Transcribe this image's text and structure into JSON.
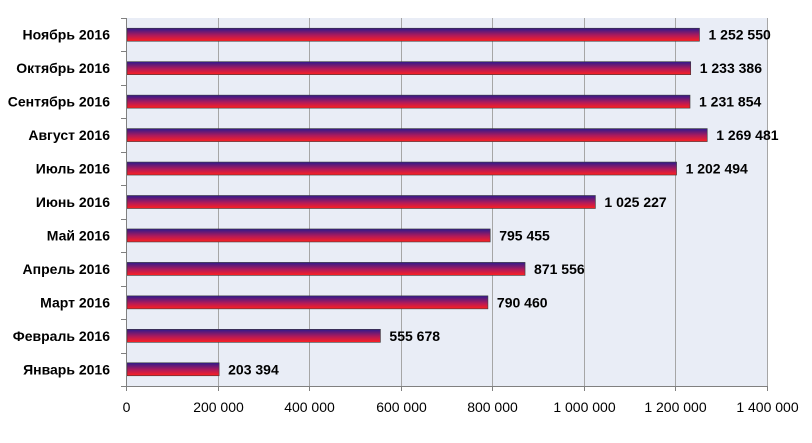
{
  "chart_data": {
    "type": "bar",
    "orientation": "horizontal",
    "title": "",
    "xlabel": "",
    "ylabel": "",
    "categories": [
      "Январь 2016",
      "Февраль 2016",
      "Март 2016",
      "Апрель 2016",
      "Май 2016",
      "Июнь 2016",
      "Июль 2016",
      "Август 2016",
      "Сентябрь 2016",
      "Октябрь 2016",
      "Ноябрь 2016"
    ],
    "values": [
      203394,
      555678,
      790460,
      871556,
      795455,
      1025227,
      1202494,
      1269481,
      1231854,
      1233386,
      1252550
    ],
    "data_labels": [
      "203 394",
      "555 678",
      "790 460",
      "871 556",
      "795 455",
      "1 025 227",
      "1 202 494",
      "1 269 481",
      "1 231 854",
      "1 233 386",
      "1 252 550"
    ],
    "xlim": [
      0,
      1400000
    ],
    "x_ticks": [
      0,
      200000,
      400000,
      600000,
      800000,
      1000000,
      1200000,
      1400000
    ],
    "x_tick_labels": [
      "0",
      "200 000",
      "400 000",
      "600 000",
      "800 000",
      "1 000 000",
      "1 200 000",
      "1 400 000"
    ],
    "grid": "vertical",
    "legend": "none",
    "colors": {
      "plot_background": "#e9edf6",
      "gridline": "#a6a6a6",
      "axis": "#808080",
      "bar_top": "#2e1a8c",
      "bar_mid": "#b01a5a",
      "bar_bottom": "#ff2020"
    }
  }
}
